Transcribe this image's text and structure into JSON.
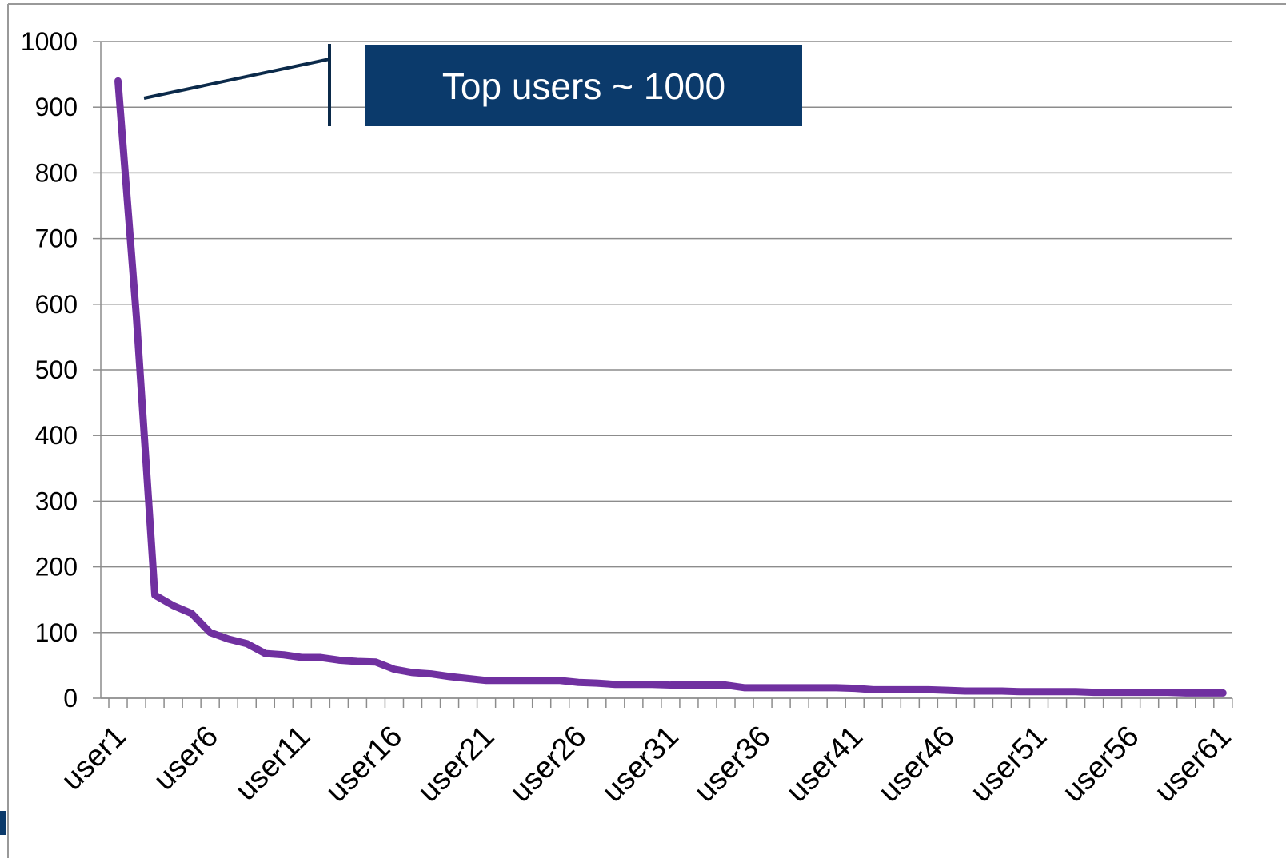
{
  "chart_data": {
    "type": "line",
    "annotation": "Top users ~ 1000",
    "categories": [
      "user1",
      null,
      null,
      null,
      null,
      "user6",
      null,
      null,
      null,
      null,
      "user11",
      null,
      null,
      null,
      null,
      "user16",
      null,
      null,
      null,
      null,
      "user21",
      null,
      null,
      null,
      null,
      "user26",
      null,
      null,
      null,
      null,
      "user31",
      null,
      null,
      null,
      null,
      "user36",
      null,
      null,
      null,
      null,
      "user41",
      null,
      null,
      null,
      null,
      "user46",
      null,
      null,
      null,
      null,
      "user51",
      null,
      null,
      null,
      null,
      "user56",
      null,
      null,
      null,
      null,
      "user61"
    ],
    "series": [
      {
        "color": "#7030a0",
        "values": [
          940,
          580,
          157,
          141,
          129,
          100,
          90,
          83,
          68,
          66,
          62,
          62,
          58,
          56,
          55,
          44,
          39,
          37,
          33,
          30,
          27,
          27,
          27,
          27,
          27,
          24,
          23,
          21,
          21,
          21,
          20,
          20,
          20,
          20,
          16,
          16,
          16,
          16,
          16,
          16,
          15,
          13,
          13,
          13,
          13,
          12,
          11,
          11,
          11,
          10,
          10,
          10,
          10,
          9,
          9,
          9,
          9,
          9,
          8,
          8,
          8
        ]
      }
    ],
    "ylim": [
      0,
      1000
    ],
    "yticks": [
      0,
      100,
      200,
      300,
      400,
      500,
      600,
      700,
      800,
      900,
      1000
    ],
    "grid": true
  }
}
